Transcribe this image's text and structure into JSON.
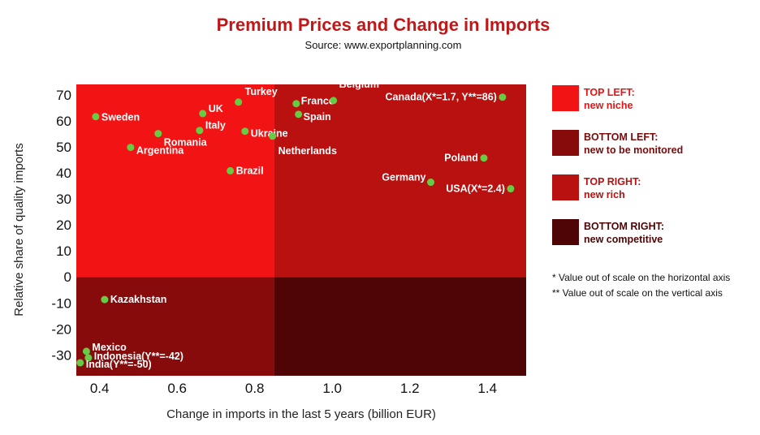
{
  "chart_data": {
    "type": "scatter",
    "title": "Premium Prices and Change in Imports",
    "subtitle": "Source: www.exportplanning.com",
    "xlabel": "Change in imports in the last 5 years (billion EUR)",
    "ylabel": "Relative share of quality imports",
    "xlim": [
      0.34,
      1.5
    ],
    "ylim": [
      -38,
      74
    ],
    "xticks": [
      0.4,
      0.6,
      0.8,
      1.0,
      1.2,
      1.4
    ],
    "xtick_labels": [
      "0.4",
      "0.6",
      "0.8",
      "1.0",
      "1.2",
      "1.4"
    ],
    "yticks": [
      70,
      60,
      50,
      40,
      30,
      20,
      10,
      0,
      -10,
      -20,
      -30
    ],
    "ytick_labels": [
      "70",
      "60",
      "50",
      "40",
      "30",
      "20",
      "10",
      "0",
      "-10",
      "-20",
      "-30"
    ],
    "grid": false,
    "quadrant_split": {
      "x": 0.85,
      "y": 0
    },
    "point_color": "#66cc44",
    "points": [
      {
        "label": "Sweden",
        "x": 0.39,
        "y": 61.6
      },
      {
        "label": "UK",
        "x": 0.666,
        "y": 62.8
      },
      {
        "label": "Turkey",
        "x": 0.758,
        "y": 67.2
      },
      {
        "label": "Italy",
        "x": 0.658,
        "y": 56.3
      },
      {
        "label": "Romania",
        "x": 0.551,
        "y": 55.1
      },
      {
        "label": "Argentina",
        "x": 0.48,
        "y": 49.8
      },
      {
        "label": "Ukraine",
        "x": 0.775,
        "y": 56.0
      },
      {
        "label": "Netherlands",
        "x": 0.846,
        "y": 54.1
      },
      {
        "label": "Brazil",
        "x": 0.737,
        "y": 40.8
      },
      {
        "label": "France",
        "x": 0.907,
        "y": 66.6
      },
      {
        "label": "Belgium",
        "x": 1.003,
        "y": 67.8
      },
      {
        "label": "Spain",
        "x": 0.913,
        "y": 62.5
      },
      {
        "label": "Canada(X*=1.7, Y**=86)",
        "x": 1.439,
        "y": 69.1
      },
      {
        "label": "Poland",
        "x": 1.391,
        "y": 45.7
      },
      {
        "label": "Germany",
        "x": 1.254,
        "y": 36.4
      },
      {
        "label": "USA(X*=2.4)",
        "x": 1.46,
        "y": 33.9
      },
      {
        "label": "Kazakhstan",
        "x": 0.413,
        "y": -8.7
      },
      {
        "label": "Mexico",
        "x": 0.366,
        "y": -28.6
      },
      {
        "label": "Indonesia(Y**=-42)",
        "x": 0.371,
        "y": -31.1
      },
      {
        "label": "India(Y**=-50)",
        "x": 0.35,
        "y": -33.0
      }
    ],
    "quadrants": [
      {
        "title": "TOP LEFT:",
        "desc": "new niche",
        "color": "#f21414",
        "text_color": "#e81414"
      },
      {
        "title": "BOTTOM LEFT:",
        "desc": "new to be monitored",
        "color": "#870b0b",
        "text_color": "#7a0a0a"
      },
      {
        "title": "TOP RIGHT:",
        "desc": "new rich",
        "color": "#b91010",
        "text_color": "#b91010"
      },
      {
        "title": "BOTTOM RIGHT:",
        "desc": "new competitive",
        "color": "#4f0505",
        "text_color": "#4f0505"
      }
    ],
    "notes": [
      "* Value out of scale on the horizontal axis",
      "** Value out of scale on the vertical axis"
    ]
  }
}
